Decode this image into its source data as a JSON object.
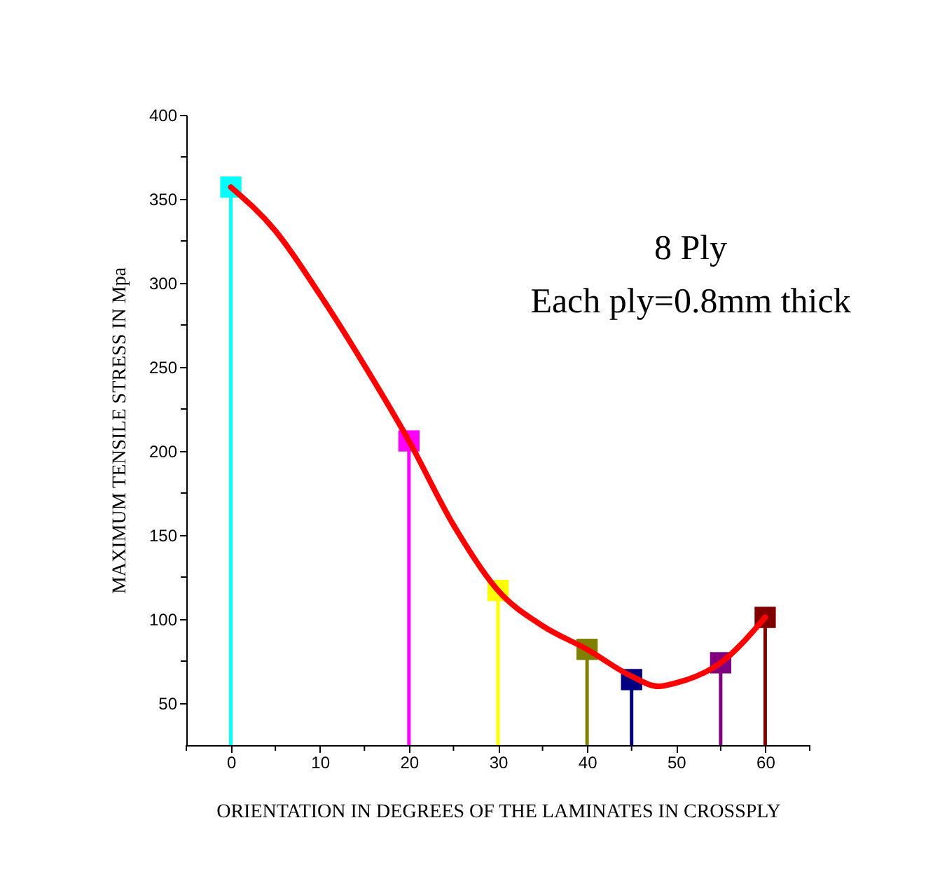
{
  "chart_data": {
    "type": "lollipop",
    "xlabel": "ORIENTATION IN DEGREES OF THE LAMINATES IN CROSSPLY",
    "ylabel": "MAXIMUM TENSILE STRESS IN Mpa",
    "annotations": [
      "8 Ply",
      "Each ply=0.8mm thick"
    ],
    "x": [
      0,
      20,
      30,
      40,
      45,
      55,
      60
    ],
    "series": [
      {
        "type": "lollipop",
        "values": [
          357,
          206,
          117,
          82,
          64,
          74,
          101
        ],
        "colors": [
          "#00ffff",
          "#ff00ff",
          "#ffff00",
          "#808000",
          "#000080",
          "#800080",
          "#800000"
        ],
        "marker": "square"
      },
      {
        "type": "line",
        "color": "#ff0000",
        "marker": "none",
        "line_style": "solid",
        "x": [
          0,
          5,
          10,
          15,
          20,
          25,
          30,
          35,
          40,
          45,
          48,
          50,
          55,
          60
        ],
        "values": [
          357,
          331,
          293,
          251,
          206,
          156,
          117,
          96,
          82,
          66,
          60,
          62,
          74,
          101
        ]
      }
    ],
    "xlim": [
      -5,
      65
    ],
    "ylim": [
      25,
      400
    ],
    "xticks": [
      {
        "value": -5,
        "label": null
      },
      0,
      {
        "value": 5,
        "label": null
      },
      10,
      {
        "value": 15,
        "label": null
      },
      20,
      {
        "value": 25,
        "label": null
      },
      30,
      {
        "value": 35,
        "label": null
      },
      40,
      {
        "value": 45,
        "label": null
      },
      50,
      {
        "value": 55,
        "label": null
      },
      60,
      {
        "value": 65,
        "label": null
      }
    ],
    "yticks": [
      50,
      {
        "value": 75,
        "label": null
      },
      100,
      {
        "value": 125,
        "label": null
      },
      150,
      {
        "value": 175,
        "label": null
      },
      200,
      {
        "value": 225,
        "label": null
      },
      250,
      {
        "value": 275,
        "label": null
      },
      300,
      {
        "value": 325,
        "label": null
      },
      350,
      {
        "value": 375,
        "label": null
      },
      400
    ],
    "grid": false,
    "legend": false
  }
}
